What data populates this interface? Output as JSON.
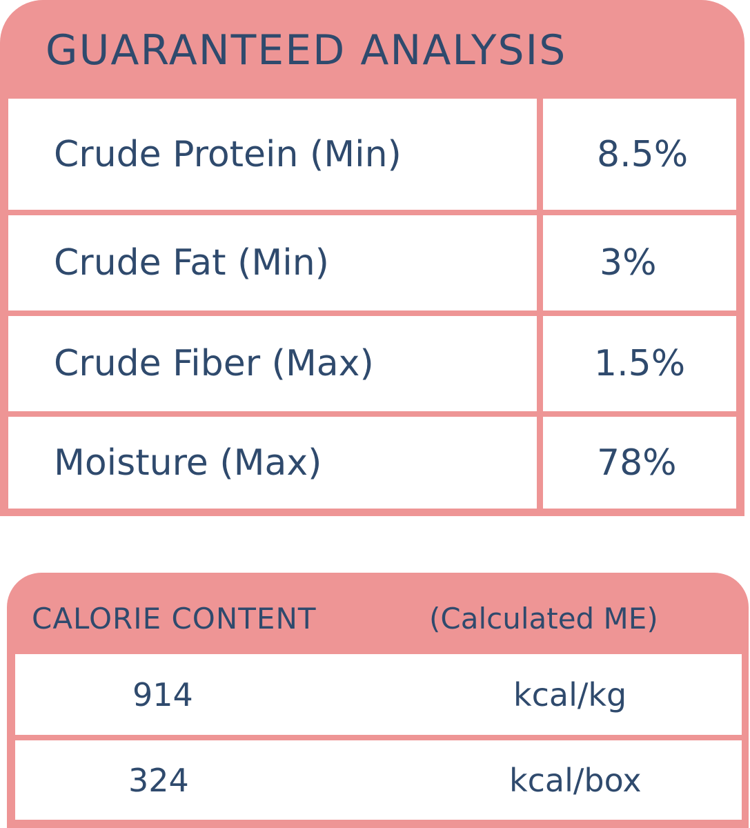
{
  "colors": {
    "accent": "#ee9595",
    "text": "#2f4a6d"
  },
  "guaranteed_analysis": {
    "title": "GUARANTEED ANALYSIS",
    "rows": [
      {
        "label": "Crude Protein (Min)",
        "value": "8.5%"
      },
      {
        "label": "Crude Fat (Min)",
        "value": "3%"
      },
      {
        "label": "Crude Fiber (Max)",
        "value": "1.5%"
      },
      {
        "label": "Moisture (Max)",
        "value": "78%"
      }
    ]
  },
  "calorie_content": {
    "title": "CALORIE CONTENT",
    "subtitle": "(Calculated ME)",
    "rows": [
      {
        "value": "914",
        "unit": "kcal/kg"
      },
      {
        "value": "324",
        "unit": "kcal/box"
      }
    ]
  }
}
